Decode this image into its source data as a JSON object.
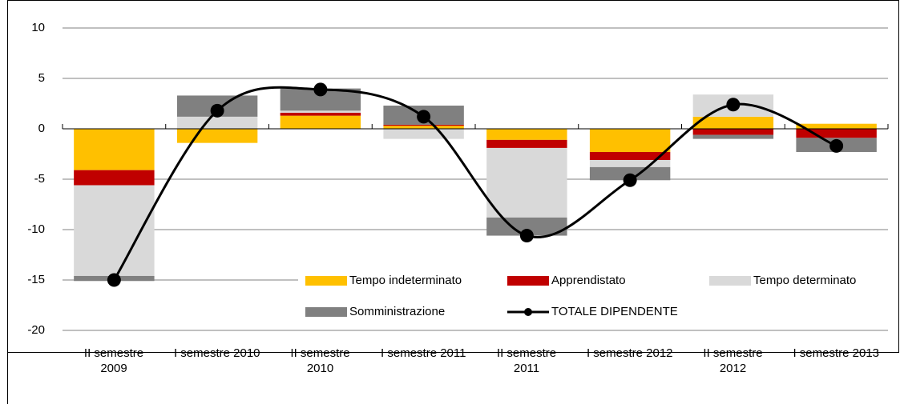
{
  "chart_data": {
    "type": "bar",
    "categories": [
      "II semestre\n2009",
      "I semestre 2010",
      "II semestre\n2010",
      "I semestre 2011",
      "II semestre\n2011",
      "I semestre 2012",
      "II semestre\n2012",
      "I semestre 2013"
    ],
    "series": [
      {
        "name": "Tempo indeterminato",
        "type": "bar",
        "color": "#ffc000",
        "values": [
          -4.1,
          -1.4,
          1.3,
          0.3,
          -1.1,
          -2.3,
          1.2,
          0.5
        ]
      },
      {
        "name": "Apprendistato",
        "type": "bar",
        "color": "#c00000",
        "values": [
          -1.5,
          0,
          0.3,
          0.1,
          -0.8,
          -0.8,
          -0.6,
          -0.9
        ]
      },
      {
        "name": "Tempo determinato",
        "type": "bar",
        "color": "#d9d9d9",
        "values": [
          -9.0,
          1.2,
          0.2,
          -1.0,
          -6.9,
          -0.7,
          2.2,
          0
        ]
      },
      {
        "name": "Somministrazione",
        "type": "bar",
        "color": "#808080",
        "values": [
          -0.5,
          2.1,
          2.2,
          1.9,
          -1.8,
          -1.3,
          -0.4,
          -1.4
        ]
      },
      {
        "name": "TOTALE DIPENDENTE",
        "type": "line",
        "color": "#000000",
        "values": [
          -15,
          1.8,
          3.9,
          1.2,
          -10.6,
          -5.1,
          2.4,
          -1.7
        ]
      }
    ],
    "ylim": [
      -20,
      10
    ],
    "yticks": [
      -20,
      -15,
      -10,
      -5,
      0,
      5,
      10
    ],
    "grid": true,
    "legend": "bottom-right"
  }
}
